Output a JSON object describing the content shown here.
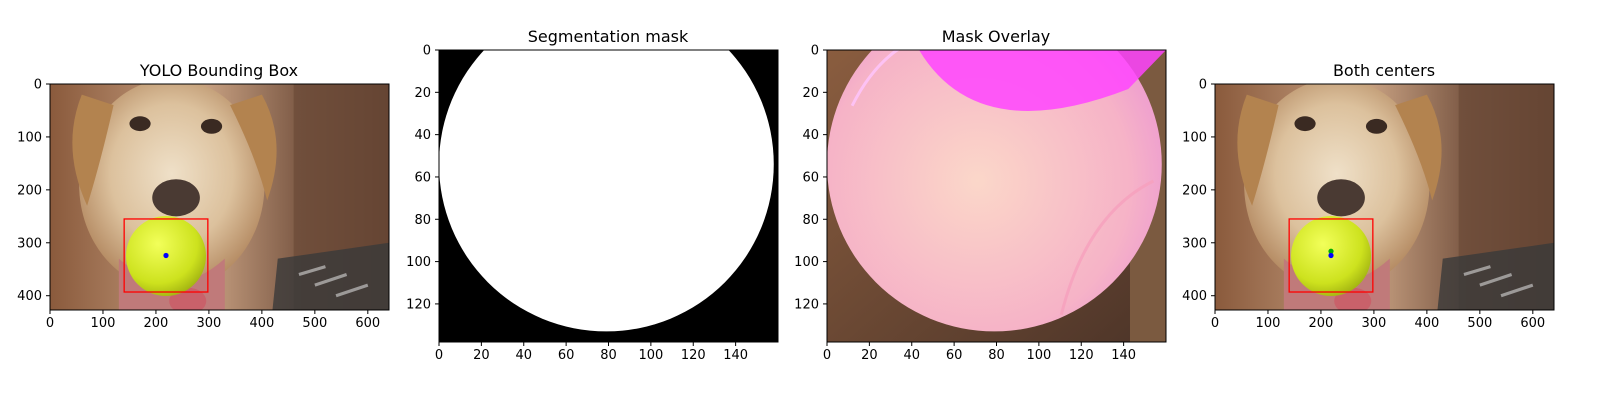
{
  "chart_data": [
    {
      "type": "image",
      "title": "YOLO Bounding Box",
      "xlim": [
        0,
        640
      ],
      "ylim": [
        427,
        0
      ],
      "xticks": [
        0,
        100,
        200,
        300,
        400,
        500,
        600
      ],
      "yticks": [
        0,
        100,
        200,
        300,
        400
      ],
      "image": "photo of a yellow dog holding a tennis ball in its mouth",
      "bbox": {
        "x1": 140,
        "y1": 255,
        "x2": 298,
        "y2": 393,
        "color": "#ff0000"
      },
      "points": [
        {
          "x": 219,
          "y": 324,
          "color": "#0000ff"
        }
      ]
    },
    {
      "type": "image",
      "title": "Segmentation mask",
      "xlim": [
        0,
        160
      ],
      "ylim": [
        138,
        0
      ],
      "xticks": [
        0,
        20,
        40,
        60,
        80,
        100,
        120,
        140
      ],
      "yticks": [
        0,
        20,
        40,
        60,
        80,
        100,
        120
      ],
      "image": "binary mask: white circle on black background",
      "mask_circle": {
        "cx": 79,
        "cy": 54,
        "r": 79
      }
    },
    {
      "type": "image",
      "title": "Mask Overlay",
      "xlim": [
        0,
        160
      ],
      "ylim": [
        138,
        0
      ],
      "xticks": [
        0,
        20,
        40,
        60,
        80,
        100,
        120,
        140
      ],
      "yticks": [
        0,
        20,
        40,
        60,
        80,
        100,
        120
      ],
      "image": "crop of the tennis ball with pink/magenta mask overlay",
      "mask_circle": {
        "cx": 79,
        "cy": 54,
        "r": 79
      }
    },
    {
      "type": "image",
      "title": "Both centers",
      "xlim": [
        0,
        640
      ],
      "ylim": [
        427,
        0
      ],
      "xticks": [
        0,
        100,
        200,
        300,
        400,
        500,
        600
      ],
      "yticks": [
        0,
        100,
        200,
        300,
        400
      ],
      "image": "photo of a yellow dog holding a tennis ball in its mouth",
      "bbox": {
        "x1": 140,
        "y1": 255,
        "x2": 298,
        "y2": 393,
        "color": "#ff0000"
      },
      "points": [
        {
          "x": 219,
          "y": 316,
          "color": "#00b000"
        },
        {
          "x": 219,
          "y": 324,
          "color": "#0000ff"
        }
      ]
    }
  ],
  "colors": {
    "bbox": "#ff0000",
    "yolo_center": "#0000ff",
    "mask_center": "#00b000",
    "overlay": "#ff44ff"
  }
}
